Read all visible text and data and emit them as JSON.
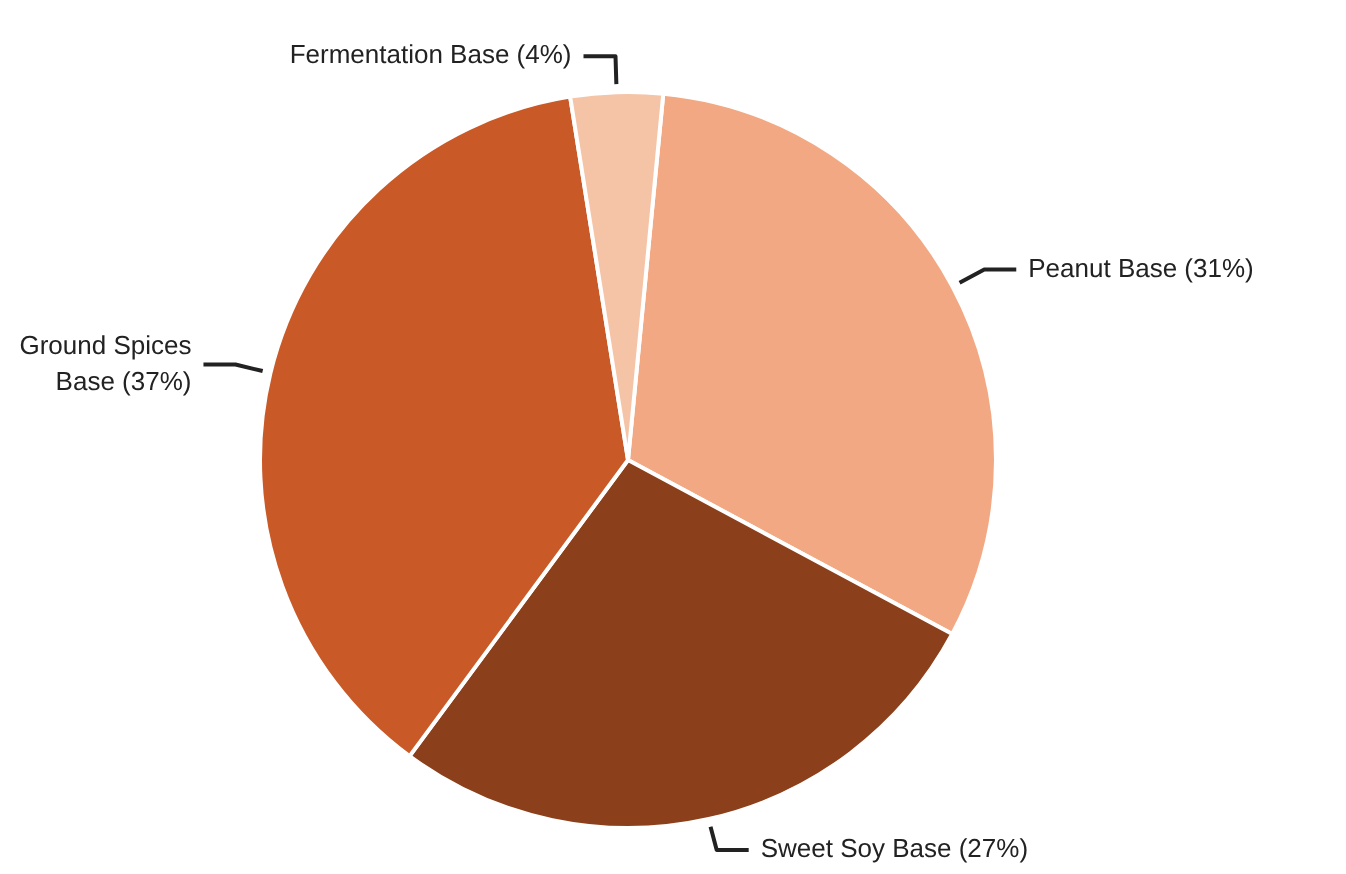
{
  "chart_data": {
    "type": "pie",
    "categories": [
      "Peanut Base",
      "Sweet Soy Base",
      "Ground Spices Base",
      "Fermentation Base"
    ],
    "values": [
      31,
      27,
      37,
      4
    ],
    "value_labels": [
      "(31%)",
      "(27%)",
      "(37%)",
      "(4%)"
    ],
    "colors": [
      "#f2a882",
      "#8b3f1a",
      "#c95a28",
      "#f5c3a5"
    ],
    "legend": false
  }
}
